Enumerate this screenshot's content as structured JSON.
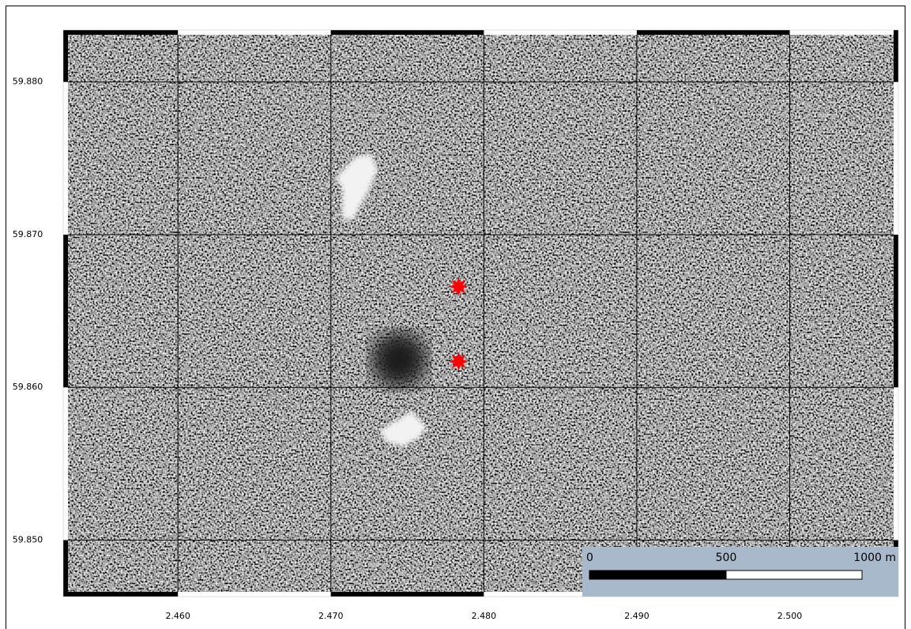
{
  "map": {
    "xlim": [
      2.4525,
      2.5071
    ],
    "ylim": [
      59.8463,
      59.8834
    ],
    "xticks": [
      {
        "value": 2.46,
        "label": "2.460"
      },
      {
        "value": 2.47,
        "label": "2.470"
      },
      {
        "value": 2.48,
        "label": "2.480"
      },
      {
        "value": 2.49,
        "label": "2.490"
      },
      {
        "value": 2.5,
        "label": "2.500"
      }
    ],
    "yticks": [
      {
        "value": 59.85,
        "label": "59.850"
      },
      {
        "value": 59.86,
        "label": "59.860"
      },
      {
        "value": 59.87,
        "label": "59.870"
      },
      {
        "value": 59.88,
        "label": "59.880"
      }
    ],
    "grid": true,
    "markers": {
      "color": "#ff0000",
      "lon": [
        2.47835,
        2.47835
      ],
      "lat": [
        59.8666,
        59.8617
      ]
    },
    "scale_bar": {
      "labels": [
        "0",
        "500",
        "1000 m"
      ]
    }
  }
}
